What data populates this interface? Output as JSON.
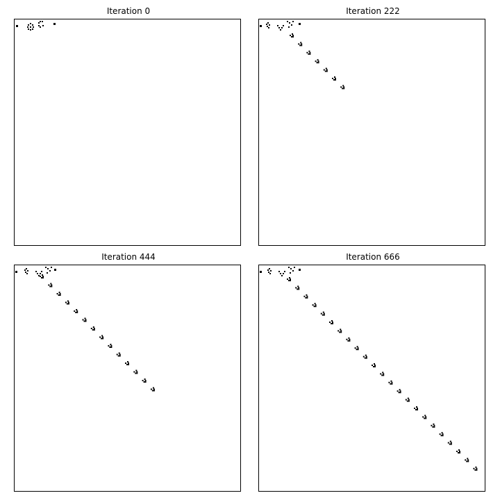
{
  "panels": [
    {
      "title": "Iteration 0"
    },
    {
      "title": "Iteration 222"
    },
    {
      "title": "Iteration 444"
    },
    {
      "title": "Iteration 666"
    }
  ]
}
